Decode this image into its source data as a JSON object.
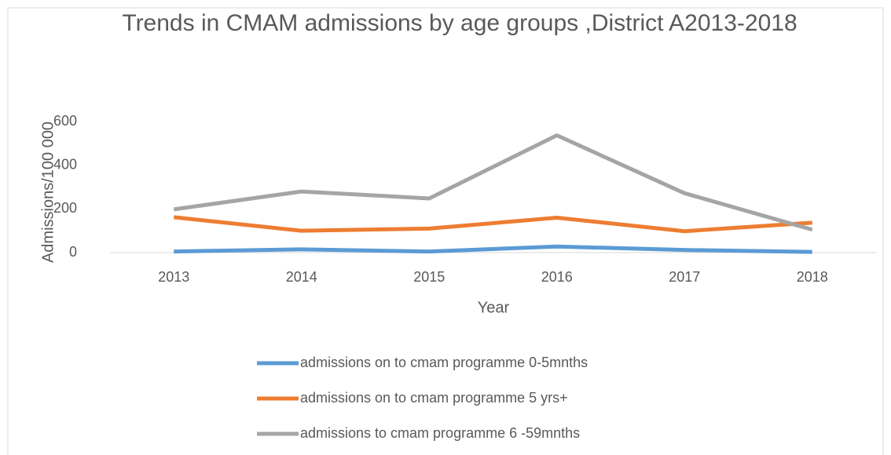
{
  "chart_data": {
    "type": "line",
    "title": "Trends in CMAM admissions by age groups ,District A2013-2018",
    "x_label": "Year",
    "y_label": "Admissions/100 000",
    "categories": [
      "2013",
      "2014",
      "2015",
      "2016",
      "2017",
      "2018"
    ],
    "series": [
      {
        "name": "admissions on to cmam programme 0-5mnths",
        "color": "#5b9bd5",
        "values": [
          5,
          15,
          5,
          28,
          12,
          3
        ]
      },
      {
        "name": "admissions on to cmam programme 5 yrs+",
        "color": "#ed7d31",
        "values": [
          162,
          100,
          110,
          160,
          98,
          137
        ]
      },
      {
        "name": "admissions to cmam programme 6 -59mnths",
        "color": "#a5a5a5",
        "values": [
          198,
          280,
          248,
          537,
          272,
          105
        ]
      }
    ],
    "ylim": [
      0,
      600
    ],
    "yticks": [
      0,
      200,
      400,
      600
    ],
    "grid": false,
    "legend": "bottom"
  }
}
